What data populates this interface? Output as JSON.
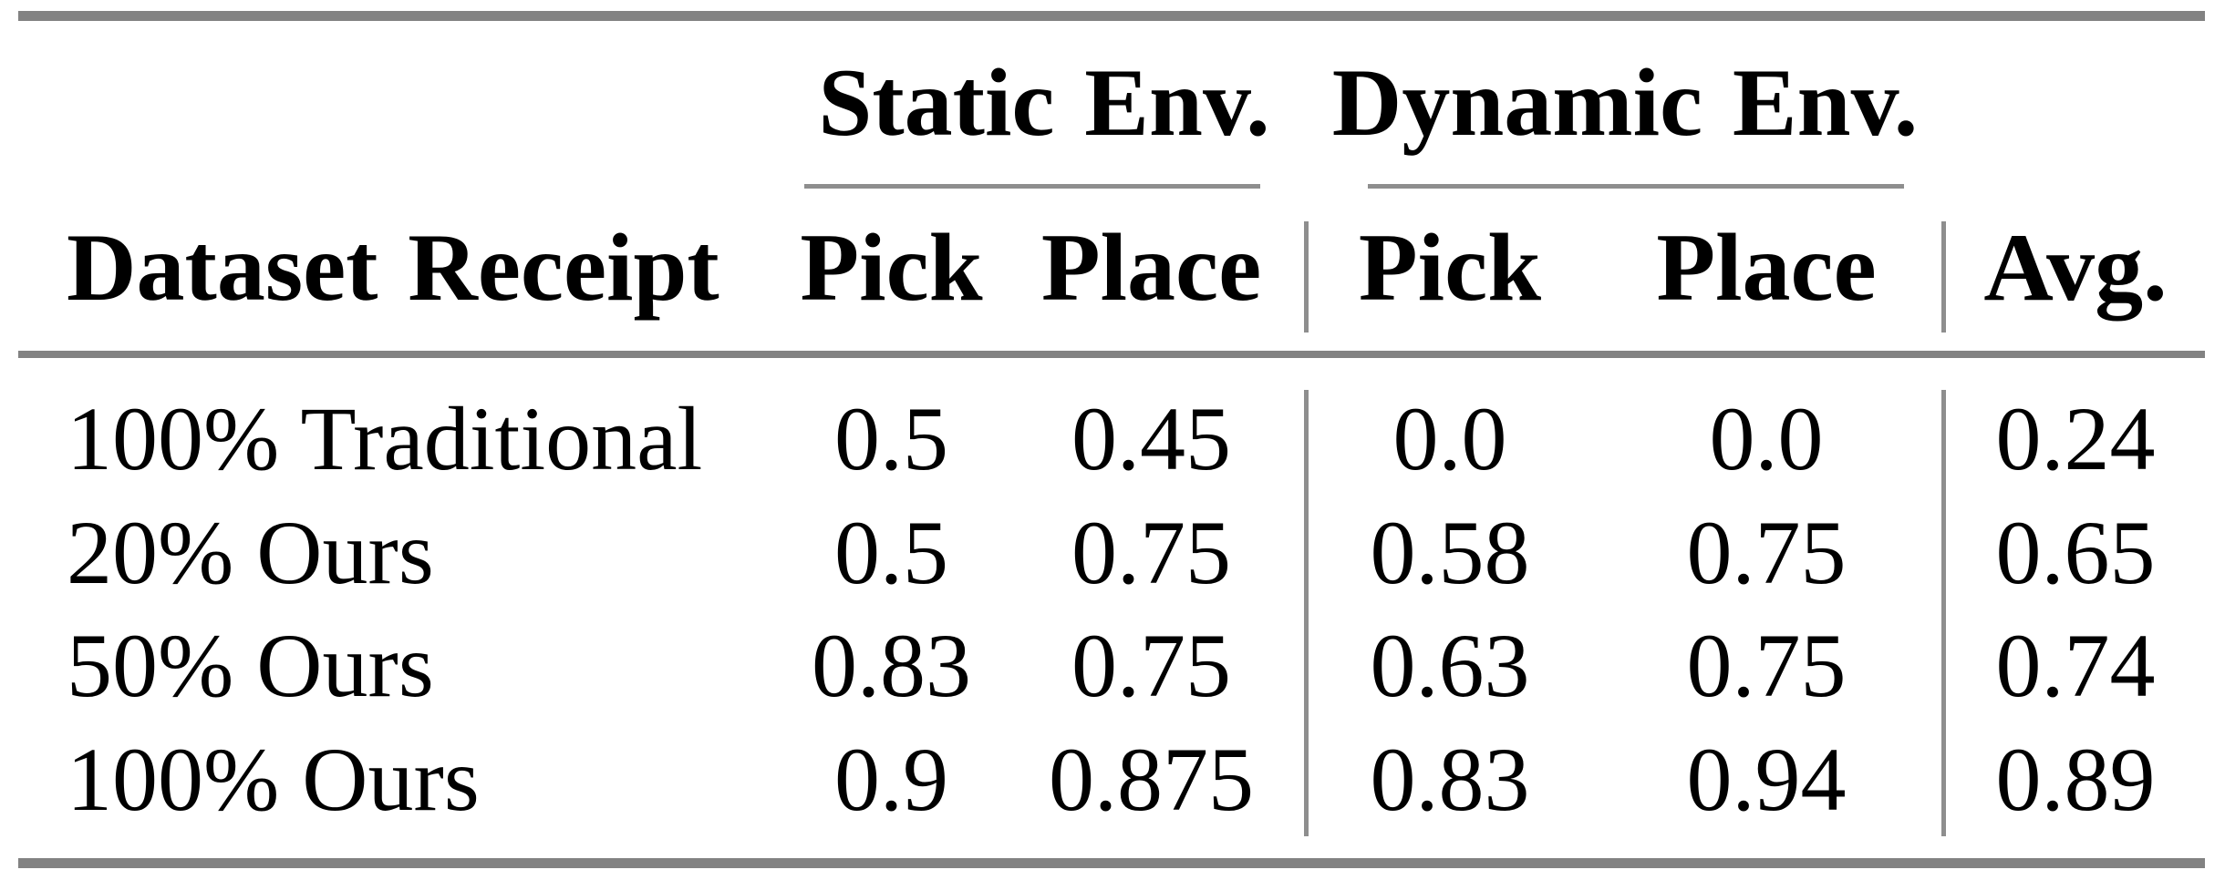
{
  "table": {
    "row_header": "Dataset Receipt",
    "avg_header": "Avg.",
    "header_groups": [
      {
        "label": "Static Env.",
        "columns": [
          "Pick",
          "Place"
        ]
      },
      {
        "label": "Dynamic Env.",
        "columns": [
          "Pick",
          "Place"
        ]
      }
    ],
    "rows": [
      {
        "label": "100% Traditional",
        "values": [
          "0.5",
          "0.45",
          "0.0",
          "0.0",
          "0.24"
        ]
      },
      {
        "label": "20% Ours",
        "values": [
          "0.5",
          "0.75",
          "0.58",
          "0.75",
          "0.65"
        ]
      },
      {
        "label": "50% Ours",
        "values": [
          "0.83",
          "0.75",
          "0.63",
          "0.75",
          "0.74"
        ]
      },
      {
        "label": "100% Ours",
        "values": [
          "0.9",
          "0.875",
          "0.83",
          "0.94",
          "0.89"
        ]
      }
    ],
    "style": {
      "thick_rule_color": "#828282",
      "thin_rule_color": "#8e8e8e",
      "text_color": "#000000",
      "background": "#ffffff"
    }
  },
  "chart_data": {
    "type": "table",
    "title": "",
    "columns": [
      "Dataset Receipt",
      "Static Env. Pick",
      "Static Env. Place",
      "Dynamic Env. Pick",
      "Dynamic Env. Place",
      "Avg."
    ],
    "rows": [
      [
        "100% Traditional",
        0.5,
        0.45,
        0.0,
        0.0,
        0.24
      ],
      [
        "20% Ours",
        0.5,
        0.75,
        0.58,
        0.75,
        0.65
      ],
      [
        "50% Ours",
        0.83,
        0.75,
        0.63,
        0.75,
        0.74
      ],
      [
        "100% Ours",
        0.9,
        0.875,
        0.83,
        0.94,
        0.89
      ]
    ]
  }
}
